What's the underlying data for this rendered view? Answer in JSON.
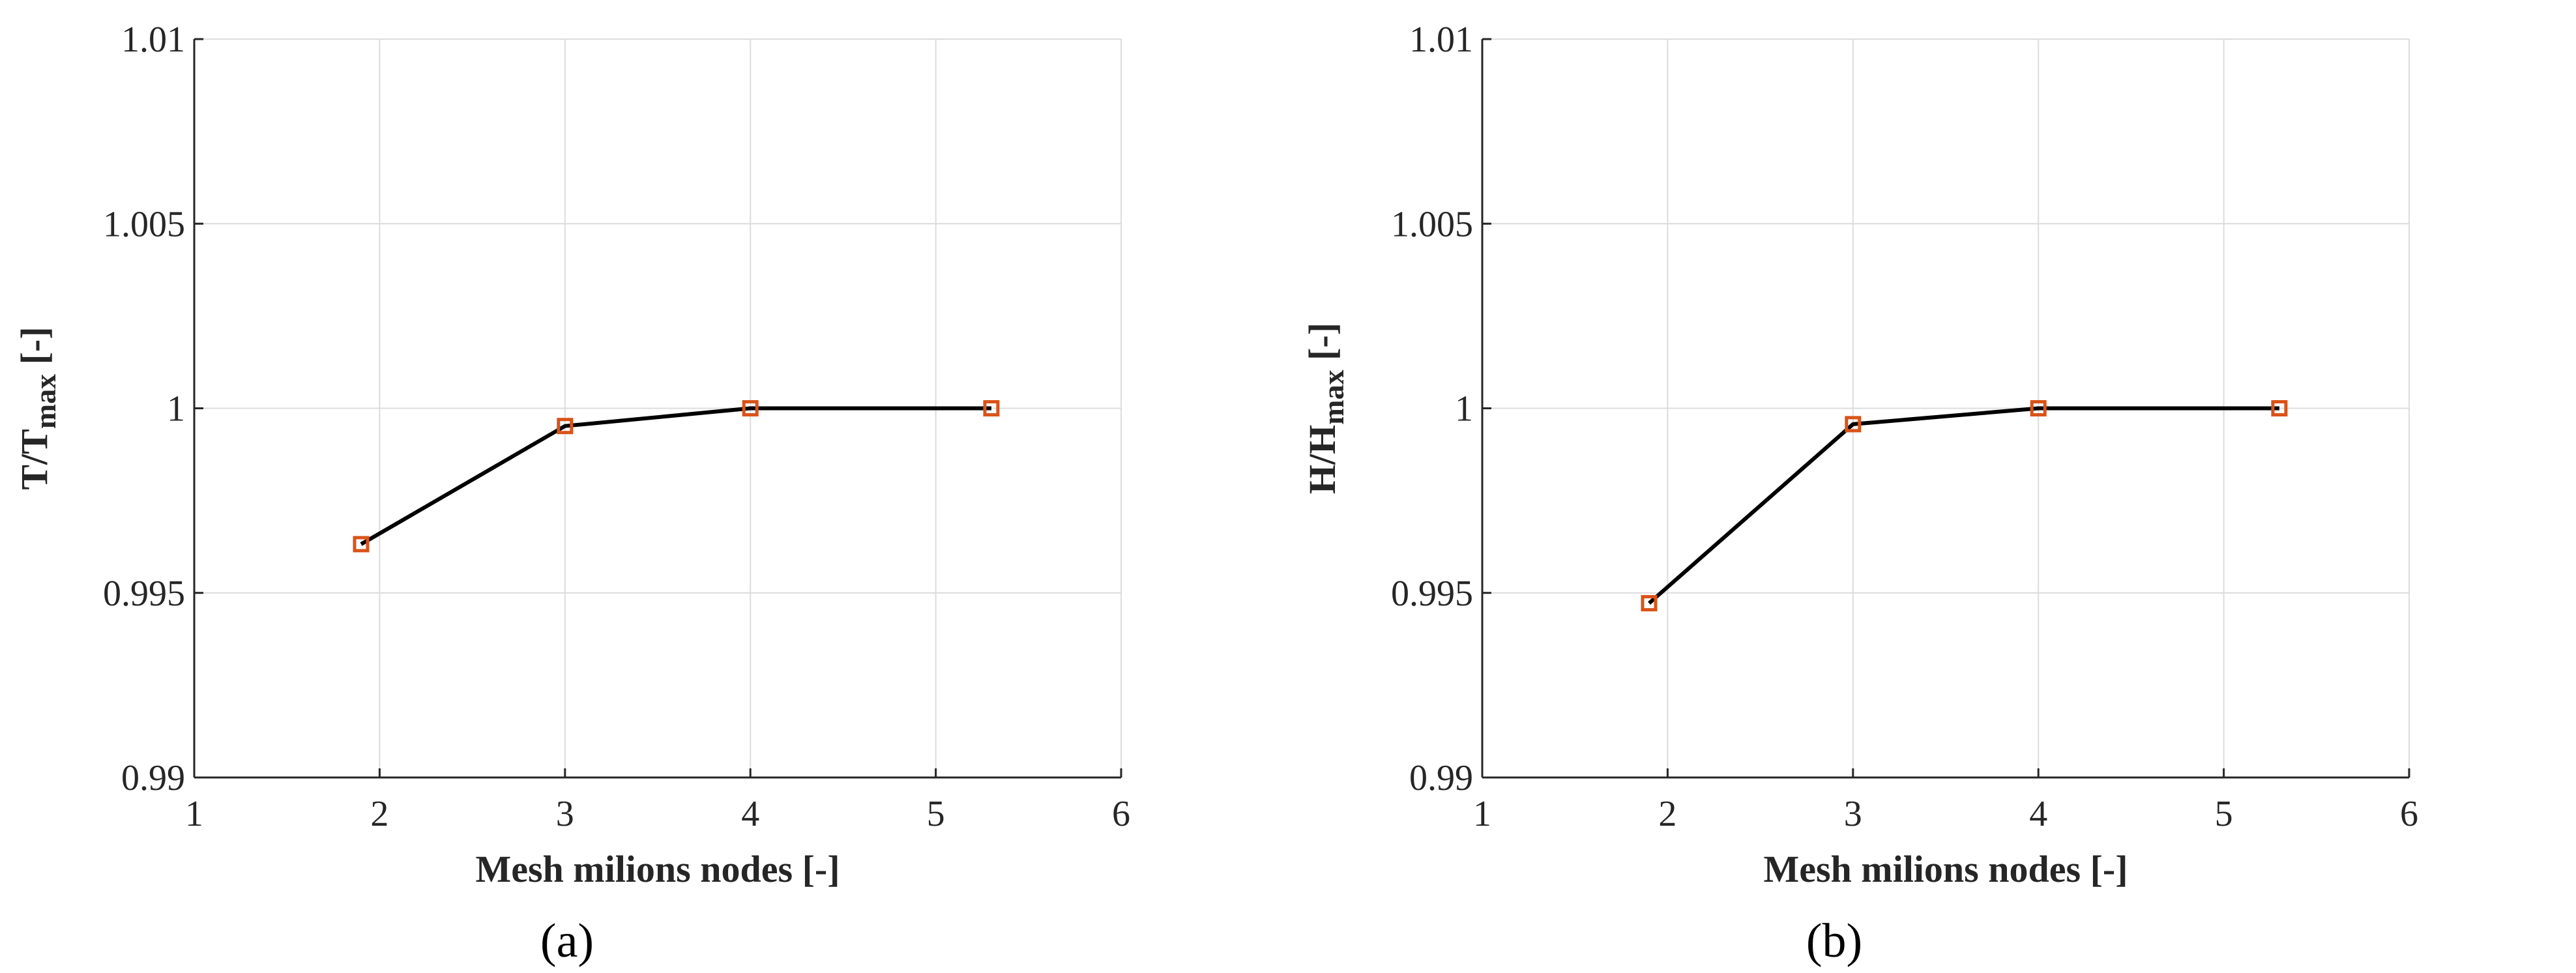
{
  "colors": {
    "line": "#000000",
    "marker": "#d95319",
    "grid": "#dcdcdc",
    "axis": "#262626",
    "background": "#ffffff"
  },
  "chart_data": [
    {
      "type": "line",
      "panel_label": "(a)",
      "xlabel": "Mesh milions nodes [-]",
      "ylabel_main": "T/T",
      "ylabel_sub": "max",
      "ylabel_unit": " [-]",
      "xlim": [
        1,
        6
      ],
      "ylim": [
        0.99,
        1.01
      ],
      "xticks": [
        1,
        2,
        3,
        4,
        5,
        6
      ],
      "yticks": [
        0.99,
        0.995,
        1,
        1.005,
        1.01
      ],
      "ytick_labels": [
        "0.99",
        "0.995",
        "1",
        "1.005",
        "1.01"
      ],
      "grid": true,
      "series": [
        {
          "x": [
            1.9,
            3.0,
            4.0,
            5.3
          ],
          "y": [
            0.99632,
            0.99952,
            1.0,
            1.0
          ],
          "marker": "square"
        }
      ]
    },
    {
      "type": "line",
      "panel_label": "(b)",
      "xlabel": "Mesh milions nodes [-]",
      "ylabel_main": "H/H",
      "ylabel_sub": "max",
      "ylabel_unit": " [-]",
      "xlim": [
        1,
        6
      ],
      "ylim": [
        0.99,
        1.01
      ],
      "xticks": [
        1,
        2,
        3,
        4,
        5,
        6
      ],
      "yticks": [
        0.99,
        0.995,
        1,
        1.005,
        1.01
      ],
      "ytick_labels": [
        "0.99",
        "0.995",
        "1",
        "1.005",
        "1.01"
      ],
      "grid": true,
      "series": [
        {
          "x": [
            1.9,
            3.0,
            4.0,
            5.3
          ],
          "y": [
            0.99472,
            0.99957,
            1.0,
            1.0
          ],
          "marker": "square"
        }
      ]
    }
  ]
}
